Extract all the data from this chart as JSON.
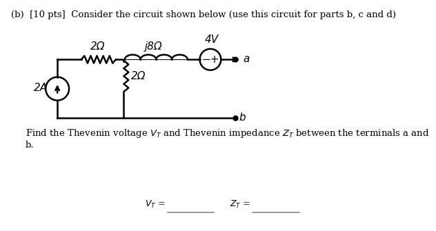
{
  "title_text": "(b)  [10 pts]  Consider the circuit shown below (use this circuit for parts b, c and d)",
  "find_text": "Find the Thevenin voltage $V_T$ and Thevenin impedance $Z_T$ between the terminals a and\nb.",
  "bg_color": "#ffffff",
  "text_color": "#000000",
  "circuit_color": "#000000",
  "label_2omega_horiz": "2Ω",
  "label_j8omega": "j8Ω",
  "label_4V": "4V",
  "label_2A": "2A",
  "label_2omega_vert": "2Ω",
  "label_a": "a",
  "label_b": "b",
  "vt_text": "$V_T$ =",
  "zt_text": "$Z_T$ ="
}
